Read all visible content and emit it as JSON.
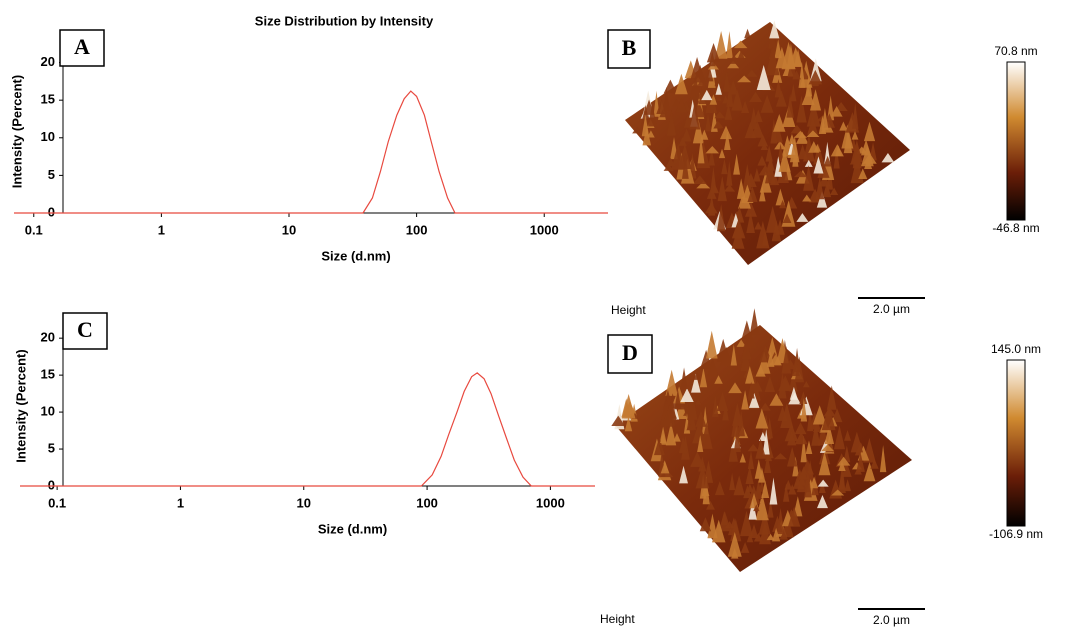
{
  "chart_data": [
    {
      "type": "line",
      "panel_label": "A",
      "title": "Size Distribution by Intensity",
      "x_label": "Size (d.nm)",
      "y_label": "Intensity (Percent)",
      "x": [
        0.07,
        38,
        45,
        52,
        60,
        70,
        80,
        90,
        100,
        115,
        130,
        150,
        175,
        200,
        3160
      ],
      "values": [
        0,
        0,
        2,
        5.5,
        9.5,
        13,
        15.2,
        16.2,
        15.5,
        13,
        9.5,
        5.5,
        2,
        0,
        0
      ],
      "color": "#e8493f",
      "xscale": "log",
      "xlim": [
        0.07,
        3160
      ],
      "xticks": [
        0.1,
        1,
        10,
        100,
        1000
      ],
      "ylim": [
        0,
        23
      ],
      "yticks": [
        0,
        5,
        10,
        15,
        20
      ]
    },
    {
      "type": "line",
      "panel_label": "C",
      "x_label": "Size (d.nm)",
      "y_label": "Intensity (Percent)",
      "x": [
        0.05,
        90,
        110,
        130,
        150,
        175,
        200,
        230,
        255,
        290,
        330,
        380,
        440,
        510,
        600,
        700,
        2300
      ],
      "values": [
        0,
        0,
        1.5,
        4,
        7,
        10,
        12.8,
        14.8,
        15.3,
        14.5,
        12.5,
        9.5,
        6.5,
        3.5,
        1.2,
        0,
        0
      ],
      "color": "#e8493f",
      "xscale": "log",
      "xlim": [
        0.05,
        2300
      ],
      "xticks": [
        0.1,
        1,
        10,
        100,
        1000
      ],
      "ylim": [
        0,
        23
      ],
      "yticks": [
        0,
        5,
        10,
        15,
        20
      ]
    }
  ],
  "afm": [
    {
      "panel_label": "B",
      "scale_max": "70.8 nm",
      "scale_min": "-46.8 nm",
      "axis_label": "Height",
      "scale_bar": "2.0 µm"
    },
    {
      "panel_label": "D",
      "scale_max": "145.0 nm",
      "scale_min": "-106.9 nm",
      "axis_label": "Height",
      "scale_bar": "2.0 µm"
    }
  ]
}
